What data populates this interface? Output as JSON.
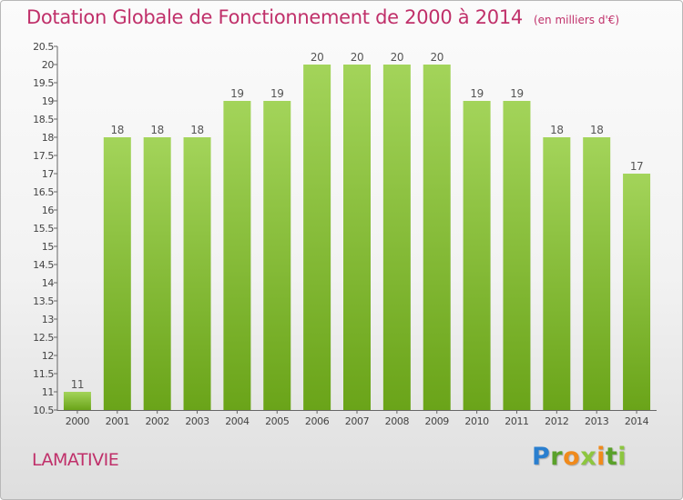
{
  "header": {
    "title": "Dotation Globale de Fonctionnement de 2000 à 2014",
    "subtitle": "(en milliers d'€)"
  },
  "footer": {
    "commune": "LAMATIVIE",
    "logo": "Proxiti"
  },
  "colors": {
    "title": "#c0306a",
    "bar_light": "#a3d45a",
    "bar_dark": "#6aa419"
  },
  "chart_data": {
    "type": "bar",
    "title": "Dotation Globale de Fonctionnement de 2000 à 2014",
    "subtitle": "(en milliers d'€)",
    "xlabel": "",
    "ylabel": "",
    "categories": [
      "2000",
      "2001",
      "2002",
      "2003",
      "2004",
      "2005",
      "2006",
      "2007",
      "2008",
      "2009",
      "2010",
      "2011",
      "2012",
      "2013",
      "2014"
    ],
    "values": [
      11,
      18,
      18,
      18,
      19,
      19,
      20,
      20,
      20,
      20,
      19,
      19,
      18,
      18,
      17
    ],
    "data_labels": [
      "11",
      "18",
      "18",
      "18",
      "19",
      "19",
      "20",
      "20",
      "20",
      "20",
      "19",
      "19",
      "18",
      "18",
      "17"
    ],
    "ylim": [
      10.5,
      20.5
    ],
    "yticks": [
      10.5,
      11,
      11.5,
      12,
      12.5,
      13,
      13.5,
      14,
      14.5,
      15,
      15.5,
      16,
      16.5,
      17,
      17.5,
      18,
      18.5,
      19,
      19.5,
      20,
      20.5
    ],
    "ytick_labels": [
      "10.5",
      "11",
      "11.5",
      "12",
      "12.5",
      "13",
      "13.5",
      "14",
      "14.5",
      "15",
      "15.5",
      "16",
      "16.5",
      "17",
      "17.5",
      "18",
      "18.5",
      "19",
      "19.5",
      "20",
      "20.5"
    ],
    "grid": false,
    "legend": "none"
  }
}
